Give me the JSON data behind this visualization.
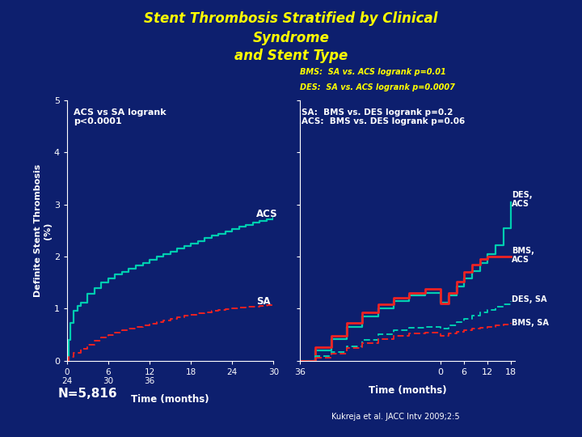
{
  "title_line1": "Stent Thrombosis Stratified by Clinical",
  "title_line2": "Syndrome",
  "title_line3": "and Stent Type",
  "title_color": "#FFFF00",
  "bg_color": "#0d1f6e",
  "teal_color": "#00CDB0",
  "red_color": "#EE2222",
  "white": "#FFFFFF",
  "yellow": "#FFFF00",
  "left_annotation": "ACS vs SA logrank\np<0.0001",
  "right_annot_top1": "BMS:  SA vs. ACS logrank p=0.01",
  "right_annot_top2": "DES:  SA vs. ACS logrank p=0.0007",
  "right_annot_body": "SA:  BMS vs. DES logrank p=0.2\nACS:  BMS vs. DES logrank p=0.06",
  "n_label": "N=5,816",
  "citation": "Kukreja et al. JACC Intv 2009;2:5"
}
